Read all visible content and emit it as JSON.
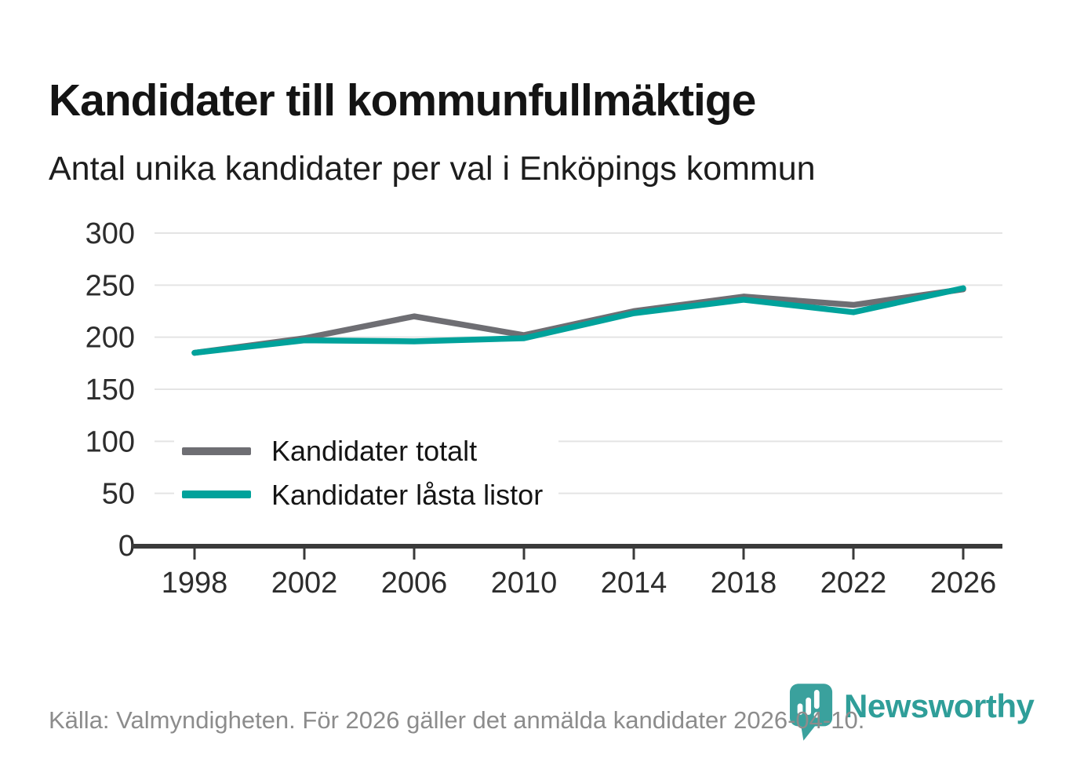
{
  "header": {
    "title": "Kandidater till kommunfullmäktige",
    "subtitle": "Antal unika kandidater per val i Enköpings kommun"
  },
  "chart_data": {
    "type": "line",
    "x": [
      1998,
      2002,
      2006,
      2010,
      2014,
      2018,
      2022,
      2026
    ],
    "series": [
      {
        "name": "Kandidater totalt",
        "color": "#6e6e73",
        "values": [
          185,
          199,
          220,
          202,
          225,
          239,
          231,
          246
        ]
      },
      {
        "name": "Kandidater låsta listor",
        "color": "#00a29b",
        "values": [
          185,
          197,
          196,
          199,
          223,
          236,
          224,
          247
        ]
      }
    ],
    "ylim": [
      0,
      300
    ],
    "yticks": [
      0,
      50,
      100,
      150,
      200,
      250,
      300
    ],
    "grid": "horizontal",
    "legend_position": "inside-left"
  },
  "footer": {
    "source_text": "Källa: Valmyndigheten. För 2026 gäller det anmälda kandidater 2026-04-10.",
    "logo_text": "Newsworthy"
  },
  "colors": {
    "accent_teal": "#00a29b",
    "neutral_gray": "#6e6e73",
    "logo_teal": "#2f9e99",
    "gridline": "#e4e4e4",
    "axis": "#3a3a3a",
    "tick_label": "#2d2d2d"
  }
}
